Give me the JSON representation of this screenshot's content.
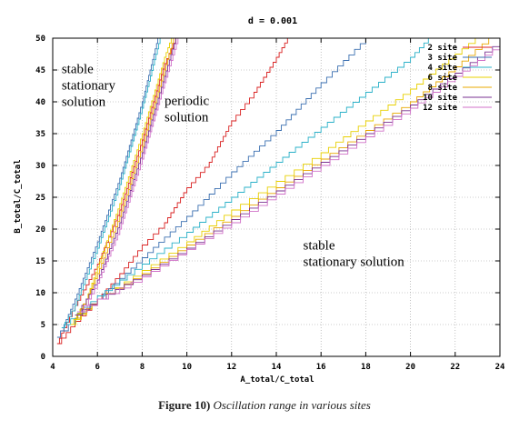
{
  "chart_data": {
    "type": "line",
    "title": "d = 0.001",
    "xlabel": "A_total/C_total",
    "ylabel": "B_total/C_total",
    "xlim": [
      4,
      24
    ],
    "ylim": [
      0,
      50
    ],
    "x_ticks": [
      4,
      6,
      8,
      10,
      12,
      14,
      16,
      18,
      20,
      22,
      24
    ],
    "y_ticks": [
      0,
      5,
      10,
      15,
      20,
      25,
      30,
      35,
      40,
      45,
      50
    ],
    "grid": true,
    "legend_position": "top-right",
    "series": [
      {
        "name": "2 site",
        "color": "#d92020",
        "lower": [
          [
            4.2,
            2
          ],
          [
            5.0,
            5.5
          ],
          [
            6.0,
            9
          ],
          [
            7.0,
            13
          ],
          [
            8.0,
            17.5
          ],
          [
            9.0,
            21
          ],
          [
            10.0,
            26.5
          ],
          [
            11.0,
            30.5
          ],
          [
            12.0,
            37
          ],
          [
            13.0,
            41.5
          ],
          [
            14.0,
            47
          ],
          [
            14.5,
            50
          ]
        ],
        "upper": [
          [
            4.2,
            2
          ],
          [
            4.5,
            4.5
          ],
          [
            5.0,
            8
          ],
          [
            6.0,
            14.5
          ],
          [
            7.0,
            23
          ],
          [
            8.0,
            34
          ],
          [
            9.0,
            46
          ],
          [
            9.5,
            50
          ]
        ]
      },
      {
        "name": "3 site",
        "color": "#3a6fb0",
        "lower": [
          [
            4.4,
            4
          ],
          [
            5.0,
            6
          ],
          [
            6.0,
            9
          ],
          [
            8.0,
            15.5
          ],
          [
            10.0,
            22
          ],
          [
            12.0,
            29
          ],
          [
            14.0,
            35.5
          ],
          [
            16.0,
            43
          ],
          [
            18.0,
            50
          ]
        ],
        "upper": [
          [
            4.2,
            3
          ],
          [
            4.5,
            5
          ],
          [
            5.0,
            9
          ],
          [
            6.0,
            18
          ],
          [
            7.0,
            28
          ],
          [
            8.0,
            40
          ],
          [
            8.7,
            50
          ]
        ]
      },
      {
        "name": "4 site",
        "color": "#2ab0c8",
        "lower": [
          [
            4.5,
            5
          ],
          [
            6.0,
            9.5
          ],
          [
            8.0,
            14.5
          ],
          [
            10.0,
            19.5
          ],
          [
            12.0,
            25
          ],
          [
            14.0,
            30.5
          ],
          [
            16.0,
            36
          ],
          [
            18.0,
            41.5
          ],
          [
            20.0,
            47
          ],
          [
            20.8,
            50
          ]
        ],
        "upper": [
          [
            4.4,
            4.5
          ],
          [
            5.0,
            8
          ],
          [
            6.0,
            17
          ],
          [
            7.0,
            27
          ],
          [
            8.0,
            39
          ],
          [
            8.8,
            50
          ]
        ]
      },
      {
        "name": "6 site",
        "color": "#e8d000",
        "lower": [
          [
            4.8,
            5
          ],
          [
            6.0,
            9
          ],
          [
            8.0,
            13.5
          ],
          [
            10.0,
            18
          ],
          [
            12.0,
            23
          ],
          [
            14.0,
            27.5
          ],
          [
            16.0,
            32
          ],
          [
            18.0,
            37
          ],
          [
            20.0,
            42
          ],
          [
            22.0,
            47.5
          ],
          [
            22.9,
            50
          ]
        ],
        "upper": [
          [
            4.8,
            5
          ],
          [
            5.5,
            9
          ],
          [
            6.0,
            14
          ],
          [
            7.0,
            24
          ],
          [
            8.0,
            35
          ],
          [
            9.0,
            47
          ],
          [
            9.3,
            50
          ]
        ]
      },
      {
        "name": "8 site",
        "color": "#e8a800",
        "lower": [
          [
            5.0,
            6
          ],
          [
            6.0,
            9
          ],
          [
            8.0,
            13
          ],
          [
            10.0,
            17.5
          ],
          [
            12.0,
            22
          ],
          [
            14.0,
            26.5
          ],
          [
            16.0,
            31
          ],
          [
            18.0,
            35.5
          ],
          [
            20.0,
            40
          ],
          [
            22.0,
            45.5
          ],
          [
            23.5,
            50
          ]
        ],
        "upper": [
          [
            5.0,
            6
          ],
          [
            5.5,
            9
          ],
          [
            6.0,
            13
          ],
          [
            7.0,
            22
          ],
          [
            8.0,
            33
          ],
          [
            9.0,
            45
          ],
          [
            9.4,
            50
          ]
        ]
      },
      {
        "name": "10 site",
        "color": "#7a3090",
        "lower": [
          [
            5.0,
            6.5
          ],
          [
            6.0,
            9
          ],
          [
            8.0,
            12.8
          ],
          [
            10.0,
            17
          ],
          [
            12.0,
            21.5
          ],
          [
            14.0,
            26
          ],
          [
            16.0,
            30.5
          ],
          [
            18.0,
            35
          ],
          [
            20.0,
            39.5
          ],
          [
            22.0,
            44.5
          ],
          [
            24.0,
            49.5
          ]
        ],
        "upper": [
          [
            5.1,
            7
          ],
          [
            5.5,
            9
          ],
          [
            6.0,
            12
          ],
          [
            7.0,
            21
          ],
          [
            8.0,
            32
          ],
          [
            9.0,
            44
          ],
          [
            9.5,
            50
          ]
        ]
      },
      {
        "name": "12 site",
        "color": "#d070c8",
        "lower": [
          [
            5.1,
            7
          ],
          [
            6.0,
            9
          ],
          [
            8.0,
            12.5
          ],
          [
            10.0,
            16.8
          ],
          [
            12.0,
            21
          ],
          [
            14.0,
            25.5
          ],
          [
            16.0,
            30
          ],
          [
            18.0,
            34.5
          ],
          [
            20.0,
            39
          ],
          [
            22.0,
            44
          ],
          [
            24.0,
            49
          ]
        ],
        "upper": [
          [
            5.2,
            7
          ],
          [
            5.6,
            9
          ],
          [
            6.0,
            11.5
          ],
          [
            7.0,
            20
          ],
          [
            8.0,
            31
          ],
          [
            9.0,
            43
          ],
          [
            9.6,
            50
          ]
        ]
      }
    ],
    "annotations": [
      {
        "text": "stable\nstationary\nsolution",
        "x": 4.4,
        "y": 44.5
      },
      {
        "text": "periodic\nsolution",
        "x": 9.0,
        "y": 39.5
      },
      {
        "text": "stable\nstationary solution",
        "x": 15.2,
        "y": 16.8
      }
    ]
  },
  "caption": {
    "label": "Figure 10)",
    "text": "Oscillation range in various sites"
  }
}
